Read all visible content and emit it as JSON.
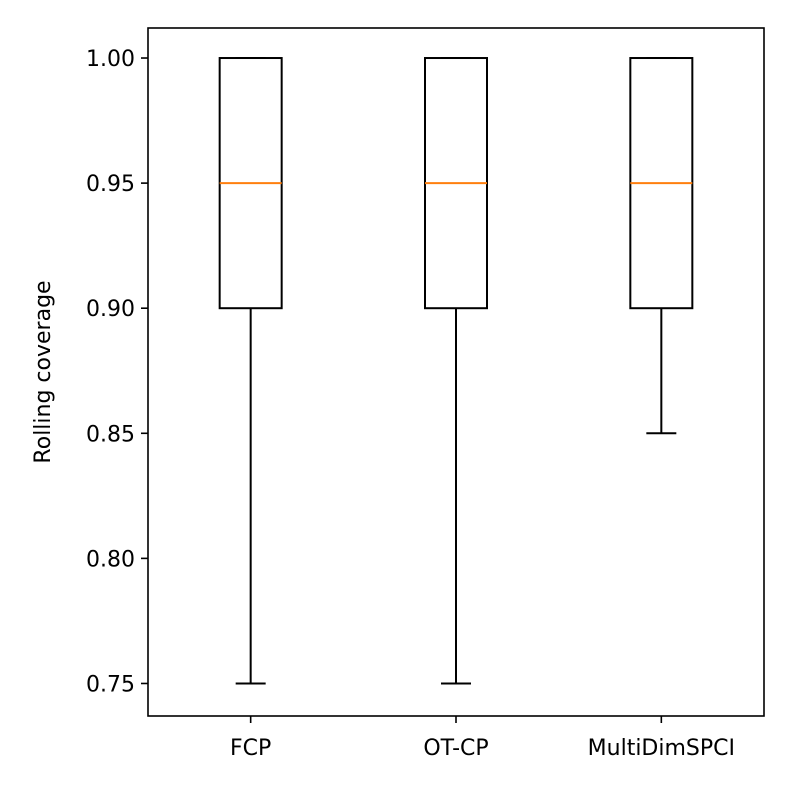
{
  "chart_data": {
    "type": "box",
    "title": "",
    "xlabel": "",
    "ylabel": "Rolling coverage",
    "ylim": [
      0.737,
      1.012
    ],
    "yticks": [
      0.75,
      0.8,
      0.85,
      0.9,
      0.95,
      1.0
    ],
    "ytick_labels": [
      "0.75",
      "0.80",
      "0.85",
      "0.90",
      "0.95",
      "1.00"
    ],
    "categories": [
      "FCP",
      "OT-CP",
      "MultiDimSPCI"
    ],
    "boxes": [
      {
        "label": "FCP",
        "whisker_low": 0.75,
        "q1": 0.9,
        "median": 0.95,
        "q3": 1.0,
        "whisker_high": 1.0
      },
      {
        "label": "OT-CP",
        "whisker_low": 0.75,
        "q1": 0.9,
        "median": 0.95,
        "q3": 1.0,
        "whisker_high": 1.0
      },
      {
        "label": "MultiDimSPCI",
        "whisker_low": 0.85,
        "q1": 0.9,
        "median": 0.95,
        "q3": 1.0,
        "whisker_high": 1.0
      }
    ],
    "grid": false,
    "colors": {
      "box": "#000000",
      "median": "#ff7f0e",
      "axes": "#000000"
    }
  }
}
